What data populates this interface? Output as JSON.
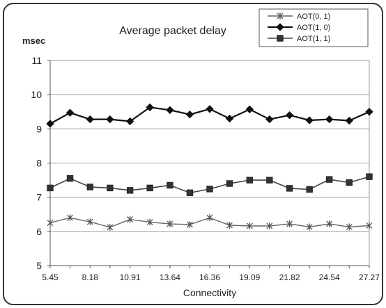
{
  "chart_data": {
    "type": "line",
    "title": "Average packet delay",
    "ylabel": "msec",
    "xlabel": "Connectivity",
    "ylim": [
      5,
      11
    ],
    "yticks": [
      5,
      6,
      7,
      8,
      9,
      10,
      11
    ],
    "xtick_labels": [
      "5.45",
      "8.18",
      "10.91",
      "13.64",
      "16.36",
      "19.09",
      "21.82",
      "24.54",
      "27.27"
    ],
    "x": [
      5.45,
      6.81,
      8.18,
      9.54,
      10.91,
      12.27,
      13.64,
      15.0,
      16.36,
      17.72,
      19.09,
      20.45,
      21.82,
      23.18,
      24.54,
      25.9,
      27.27
    ],
    "grid": "horizontal",
    "legend_position": "top-right",
    "series": [
      {
        "name": "AOT(0, 1)",
        "marker": "star",
        "values": [
          6.25,
          6.4,
          6.28,
          6.12,
          6.35,
          6.27,
          6.22,
          6.2,
          6.4,
          6.18,
          6.16,
          6.16,
          6.22,
          6.13,
          6.22,
          6.13,
          6.17
        ]
      },
      {
        "name": "AOT(1, 0)",
        "marker": "diamond",
        "values": [
          9.15,
          9.47,
          9.28,
          9.28,
          9.22,
          9.63,
          9.55,
          9.42,
          9.58,
          9.3,
          9.57,
          9.28,
          9.4,
          9.25,
          9.28,
          9.24,
          9.5
        ]
      },
      {
        "name": "AOT(1, 1)",
        "marker": "square",
        "values": [
          7.27,
          7.55,
          7.3,
          7.27,
          7.2,
          7.27,
          7.35,
          7.13,
          7.24,
          7.4,
          7.5,
          7.5,
          7.26,
          7.23,
          7.52,
          7.43,
          7.6
        ]
      }
    ]
  }
}
